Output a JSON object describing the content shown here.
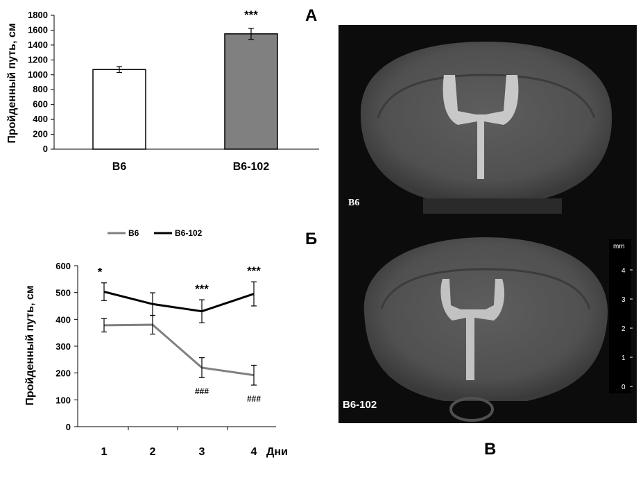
{
  "panels": {
    "a_label": "А",
    "b_label": "Б",
    "c_label": "В"
  },
  "mri": {
    "top_label": "B6",
    "bottom_label": "B6-102",
    "scale_unit": "mm",
    "scale_ticks": [
      "4",
      "3",
      "2",
      "1",
      "0"
    ]
  },
  "chart_data": [
    {
      "type": "bar",
      "ylabel": "Пройденный путь, см",
      "categories": [
        "B6",
        "B6-102"
      ],
      "values": [
        1070,
        1550
      ],
      "errors": [
        40,
        75
      ],
      "colors": [
        "#ffffff",
        "#808080"
      ],
      "ylim": [
        0,
        1800
      ],
      "yticks": [
        "0",
        "200",
        "400",
        "600",
        "800",
        "1000",
        "1200",
        "1400",
        "1600",
        "1800"
      ],
      "significance": [
        "",
        "***"
      ]
    },
    {
      "type": "line",
      "ylabel": "Пройденный путь, см",
      "xlabel": "Дни",
      "x": [
        "1",
        "2",
        "3",
        "4"
      ],
      "ylim": [
        0,
        600
      ],
      "yticks": [
        "0",
        "100",
        "200",
        "300",
        "400",
        "500",
        "600"
      ],
      "legend": "top",
      "series": [
        {
          "name": "B6",
          "color": "#808080",
          "values": [
            378,
            380,
            220,
            192
          ],
          "errors": [
            25,
            35,
            37,
            37
          ]
        },
        {
          "name": "B6-102",
          "color": "#000000",
          "values": [
            503,
            457,
            430,
            495
          ],
          "errors": [
            33,
            42,
            43,
            45
          ]
        }
      ],
      "annotations_top": [
        "*",
        "",
        "***",
        "***"
      ],
      "annotations_bottom": [
        "",
        "",
        "###",
        "###"
      ]
    }
  ]
}
